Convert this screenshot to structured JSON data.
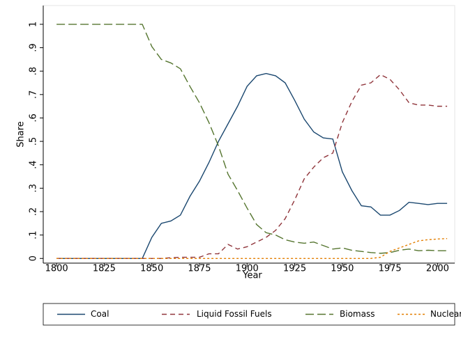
{
  "chart_data": {
    "type": "line",
    "x_label": "Year",
    "y_label": "Share",
    "x": [
      1800,
      1805,
      1810,
      1815,
      1820,
      1825,
      1830,
      1835,
      1840,
      1845,
      1850,
      1855,
      1860,
      1865,
      1870,
      1875,
      1880,
      1885,
      1890,
      1895,
      1900,
      1905,
      1910,
      1915,
      1920,
      1925,
      1930,
      1935,
      1940,
      1945,
      1950,
      1955,
      1960,
      1965,
      1970,
      1975,
      1980,
      1985,
      1990,
      1995,
      2000,
      2005
    ],
    "series": [
      {
        "name": "Coal",
        "color": "#1a476f",
        "line_style": "solid",
        "values": [
          0,
          0,
          0,
          0,
          0,
          0,
          0,
          0,
          0,
          0,
          0.09,
          0.15,
          0.16,
          0.185,
          0.265,
          0.33,
          0.41,
          0.5,
          0.575,
          0.65,
          0.735,
          0.78,
          0.79,
          0.78,
          0.75,
          0.675,
          0.595,
          0.54,
          0.515,
          0.51,
          0.37,
          0.29,
          0.225,
          0.22,
          0.185,
          0.185,
          0.205,
          0.24,
          0.235,
          0.23,
          0.235,
          0.235
        ]
      },
      {
        "name": "Liquid Fossil Fuels",
        "color": "#90353b",
        "line_style": "dash",
        "values": [
          0,
          0,
          0,
          0,
          0,
          0,
          0,
          0,
          0,
          0,
          0,
          0,
          0.003,
          0.005,
          0.005,
          0.005,
          0.02,
          0.02,
          0.06,
          0.04,
          0.05,
          0.07,
          0.09,
          0.12,
          0.17,
          0.25,
          0.34,
          0.39,
          0.43,
          0.45,
          0.58,
          0.67,
          0.74,
          0.75,
          0.785,
          0.765,
          0.72,
          0.665,
          0.655,
          0.655,
          0.65,
          0.65
        ]
      },
      {
        "name": "Biomass",
        "color": "#55752f",
        "line_style": "long-dash",
        "values": [
          1,
          1,
          1,
          1,
          1,
          1,
          1,
          1,
          1,
          1,
          0.905,
          0.85,
          0.835,
          0.81,
          0.735,
          0.665,
          0.58,
          0.48,
          0.36,
          0.29,
          0.215,
          0.145,
          0.11,
          0.1,
          0.08,
          0.07,
          0.065,
          0.07,
          0.055,
          0.04,
          0.045,
          0.035,
          0.03,
          0.025,
          0.022,
          0.025,
          0.035,
          0.04,
          0.033,
          0.035,
          0.033,
          0.033
        ]
      },
      {
        "name": "Nuclear",
        "color": "#e37e00",
        "line_style": "short-dash",
        "values": [
          0,
          0,
          0,
          0,
          0,
          0,
          0,
          0,
          0,
          0,
          0,
          0,
          0,
          0,
          0,
          0,
          0,
          0,
          0,
          0,
          0,
          0,
          0,
          0,
          0,
          0,
          0,
          0,
          0,
          0,
          0,
          0,
          0,
          0,
          0.005,
          0.03,
          0.045,
          0.06,
          0.075,
          0.08,
          0.083,
          0.085
        ]
      }
    ],
    "xlim": [
      1793,
      2009
    ],
    "xticks": [
      1800,
      1825,
      1850,
      1875,
      1900,
      1925,
      1950,
      1975,
      2000
    ],
    "ylim": [
      -0.02,
      1.08
    ],
    "yticks": [
      0,
      {
        "value": 0.1,
        "label": ".1"
      },
      {
        "value": 0.2,
        "label": ".2"
      },
      {
        "value": 0.3,
        "label": ".3"
      },
      {
        "value": 0.4,
        "label": ".4"
      },
      {
        "value": 0.5,
        "label": ".5"
      },
      {
        "value": 0.6,
        "label": ".6"
      },
      {
        "value": 0.7,
        "label": ".7"
      },
      {
        "value": 0.8,
        "label": ".8"
      },
      {
        "value": 0.9,
        "label": ".9"
      },
      1
    ],
    "legend": "bottom"
  }
}
